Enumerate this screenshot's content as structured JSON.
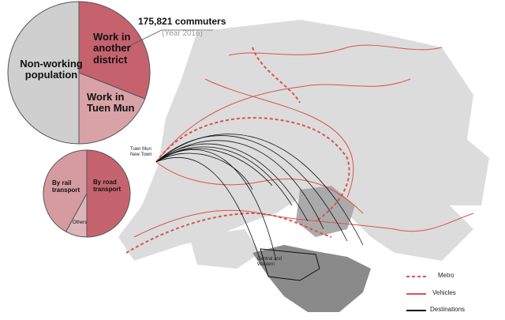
{
  "chart_data": [
    {
      "type": "pie",
      "categories": [
        "Work in another district",
        "Work in Tuen Mun",
        "Non-working population"
      ],
      "values": [
        31,
        19,
        50
      ],
      "colors": [
        "#c5626d",
        "#d9a2a7",
        "#cfcfcf"
      ]
    },
    {
      "type": "pie",
      "categories": [
        "By road transport",
        "Others",
        "By rail transport"
      ],
      "values": [
        50,
        8,
        42
      ],
      "colors": [
        "#c5646f",
        "#dcb6ba",
        "#d59ba0"
      ]
    }
  ],
  "annotation": {
    "title": "175,821 commuters",
    "subtitle": "(Year 2016)"
  },
  "map": {
    "origin": "Tuen Mun New Town",
    "destination": "Central and Western"
  },
  "legend": [
    "Metro",
    "Vehicles",
    "Destinations"
  ]
}
